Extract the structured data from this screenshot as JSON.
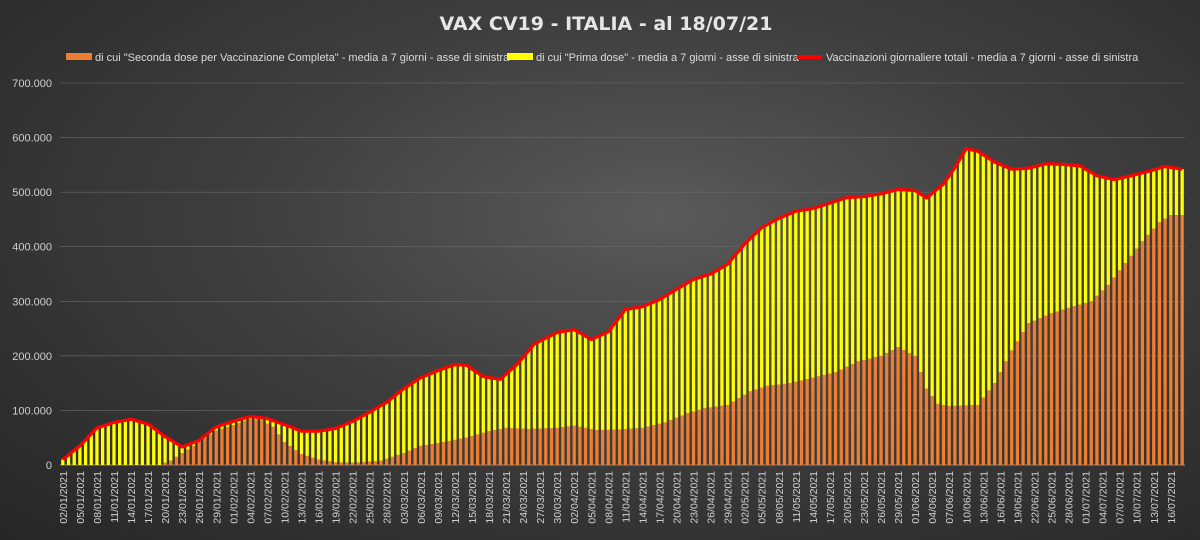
{
  "chart_data": {
    "type": "bar",
    "title": "VAX CV19  -  ITALIA  - al 18/07/21",
    "xlabel": "",
    "ylabel": "",
    "ylim": [
      0,
      700000
    ],
    "yticks": [
      0,
      100000,
      200000,
      300000,
      400000,
      500000,
      600000,
      700000
    ],
    "ytick_labels": [
      "0",
      "100.000",
      "200.000",
      "300.000",
      "400.000",
      "500.000",
      "600.000",
      "700.000"
    ],
    "x_start": "02/01/2021",
    "x_end": "18/07/2021",
    "x_tick_labels": [
      "02/01/2021",
      "05/01/2021",
      "08/01/2021",
      "11/01/2021",
      "14/01/2021",
      "17/01/2021",
      "20/01/2021",
      "23/01/2021",
      "26/01/2021",
      "29/01/2021",
      "01/02/2021",
      "04/02/2021",
      "07/02/2021",
      "10/02/2021",
      "13/02/2021",
      "16/02/2021",
      "19/02/2021",
      "22/02/2021",
      "25/02/2021",
      "28/02/2021",
      "03/03/2021",
      "06/03/2021",
      "09/03/2021",
      "12/03/2021",
      "15/03/2021",
      "18/03/2021",
      "21/03/2021",
      "24/03/2021",
      "27/03/2021",
      "30/03/2021",
      "02/04/2021",
      "05/04/2021",
      "08/04/2021",
      "11/04/2021",
      "14/04/2021",
      "17/04/2021",
      "20/04/2021",
      "23/04/2021",
      "26/04/2021",
      "29/04/2021",
      "02/05/2021",
      "05/05/2021",
      "08/05/2021",
      "11/05/2021",
      "14/05/2021",
      "17/05/2021",
      "20/05/2021",
      "23/05/2021",
      "26/05/2021",
      "29/05/2021",
      "01/06/2021",
      "04/06/2021",
      "07/06/2021",
      "10/06/2021",
      "13/06/2021",
      "16/06/2021",
      "19/06/2021",
      "22/06/2021",
      "25/06/2021",
      "28/06/2021",
      "01/07/2021",
      "04/07/2021",
      "07/07/2021",
      "10/07/2021",
      "13/07/2021",
      "16/07/2021"
    ],
    "legend_position": "top",
    "grid": true,
    "series": [
      {
        "name": "di cui \"Seconda dose per Vaccinazione Completa\" - media a 7 giorni - asse di sinistra",
        "color": "#ed7d31",
        "kind": "bar",
        "keypoints": [
          [
            "02/01/2021",
            0
          ],
          [
            "19/01/2021",
            0
          ],
          [
            "21/01/2021",
            8000
          ],
          [
            "23/01/2021",
            22000
          ],
          [
            "25/01/2021",
            35000
          ],
          [
            "29/01/2021",
            63000
          ],
          [
            "01/02/2021",
            73000
          ],
          [
            "04/02/2021",
            85000
          ],
          [
            "06/02/2021",
            82000
          ],
          [
            "08/02/2021",
            70000
          ],
          [
            "10/02/2021",
            42000
          ],
          [
            "13/02/2021",
            20000
          ],
          [
            "16/02/2021",
            10000
          ],
          [
            "19/02/2021",
            5000
          ],
          [
            "22/02/2021",
            4000
          ],
          [
            "27/02/2021",
            8000
          ],
          [
            "03/03/2021",
            22000
          ],
          [
            "06/03/2021",
            35000
          ],
          [
            "10/03/2021",
            42000
          ],
          [
            "14/03/2021",
            50000
          ],
          [
            "18/03/2021",
            62000
          ],
          [
            "21/03/2021",
            68000
          ],
          [
            "25/03/2021",
            66000
          ],
          [
            "30/03/2021",
            68000
          ],
          [
            "02/04/2021",
            72000
          ],
          [
            "06/04/2021",
            64000
          ],
          [
            "10/04/2021",
            65000
          ],
          [
            "14/04/2021",
            68000
          ],
          [
            "18/04/2021",
            78000
          ],
          [
            "22/04/2021",
            95000
          ],
          [
            "25/04/2021",
            104000
          ],
          [
            "29/04/2021",
            110000
          ],
          [
            "03/05/2021",
            135000
          ],
          [
            "06/05/2021",
            145000
          ],
          [
            "10/05/2021",
            150000
          ],
          [
            "14/05/2021",
            160000
          ],
          [
            "18/05/2021",
            170000
          ],
          [
            "22/05/2021",
            190000
          ],
          [
            "26/05/2021",
            200000
          ],
          [
            "29/05/2021",
            216000
          ],
          [
            "01/06/2021",
            200000
          ],
          [
            "03/06/2021",
            140000
          ],
          [
            "05/06/2021",
            112000
          ],
          [
            "07/06/2021",
            108000
          ],
          [
            "12/06/2021",
            110000
          ],
          [
            "15/06/2021",
            150000
          ],
          [
            "18/06/2021",
            210000
          ],
          [
            "21/06/2021",
            260000
          ],
          [
            "25/06/2021",
            278000
          ],
          [
            "28/06/2021",
            288000
          ],
          [
            "02/07/2021",
            300000
          ],
          [
            "05/07/2021",
            330000
          ],
          [
            "08/07/2021",
            370000
          ],
          [
            "11/07/2021",
            410000
          ],
          [
            "14/07/2021",
            445000
          ],
          [
            "16/07/2021",
            458000
          ],
          [
            "18/07/2021",
            458000
          ]
        ]
      },
      {
        "name": "di cui \"Prima dose\" - media a 7 giorni - asse di sinistra",
        "color": "#ffff00",
        "kind": "bar",
        "derived": "total minus seconda dose"
      },
      {
        "name": "Vaccinazioni giornaliere totali - media a 7 giorni - asse di sinistra",
        "color": "#ff0000",
        "kind": "line",
        "keypoints": [
          [
            "02/01/2021",
            10000
          ],
          [
            "05/01/2021",
            35000
          ],
          [
            "08/01/2021",
            68000
          ],
          [
            "11/01/2021",
            78000
          ],
          [
            "14/01/2021",
            84000
          ],
          [
            "17/01/2021",
            75000
          ],
          [
            "20/01/2021",
            52000
          ],
          [
            "23/01/2021",
            33000
          ],
          [
            "26/01/2021",
            45000
          ],
          [
            "29/01/2021",
            70000
          ],
          [
            "01/02/2021",
            80000
          ],
          [
            "04/02/2021",
            89000
          ],
          [
            "07/02/2021",
            85000
          ],
          [
            "10/02/2021",
            74000
          ],
          [
            "13/02/2021",
            62000
          ],
          [
            "16/02/2021",
            62000
          ],
          [
            "19/02/2021",
            67000
          ],
          [
            "22/02/2021",
            80000
          ],
          [
            "25/02/2021",
            97000
          ],
          [
            "28/02/2021",
            115000
          ],
          [
            "03/03/2021",
            140000
          ],
          [
            "06/03/2021",
            160000
          ],
          [
            "09/03/2021",
            173000
          ],
          [
            "12/03/2021",
            184000
          ],
          [
            "14/03/2021",
            183000
          ],
          [
            "17/03/2021",
            162000
          ],
          [
            "20/03/2021",
            157000
          ],
          [
            "23/03/2021",
            185000
          ],
          [
            "26/03/2021",
            222000
          ],
          [
            "30/03/2021",
            243000
          ],
          [
            "02/04/2021",
            248000
          ],
          [
            "05/04/2021",
            230000
          ],
          [
            "08/04/2021",
            244000
          ],
          [
            "11/04/2021",
            285000
          ],
          [
            "14/04/2021",
            290000
          ],
          [
            "17/04/2021",
            303000
          ],
          [
            "20/04/2021",
            322000
          ],
          [
            "23/04/2021",
            340000
          ],
          [
            "26/04/2021",
            350000
          ],
          [
            "29/04/2021",
            368000
          ],
          [
            "02/05/2021",
            405000
          ],
          [
            "05/05/2021",
            435000
          ],
          [
            "08/05/2021",
            452000
          ],
          [
            "11/05/2021",
            465000
          ],
          [
            "14/05/2021",
            470000
          ],
          [
            "17/05/2021",
            480000
          ],
          [
            "20/05/2021",
            490000
          ],
          [
            "23/05/2021",
            492000
          ],
          [
            "26/05/2021",
            497000
          ],
          [
            "29/05/2021",
            505000
          ],
          [
            "01/06/2021",
            503000
          ],
          [
            "03/06/2021",
            489000
          ],
          [
            "06/06/2021",
            515000
          ],
          [
            "08/06/2021",
            545000
          ],
          [
            "10/06/2021",
            580000
          ],
          [
            "12/06/2021",
            575000
          ],
          [
            "15/06/2021",
            555000
          ],
          [
            "18/06/2021",
            542000
          ],
          [
            "21/06/2021",
            544000
          ],
          [
            "24/06/2021",
            552000
          ],
          [
            "27/06/2021",
            551000
          ],
          [
            "30/06/2021",
            548000
          ],
          [
            "03/07/2021",
            530000
          ],
          [
            "06/07/2021",
            523000
          ],
          [
            "09/07/2021",
            530000
          ],
          [
            "12/07/2021",
            538000
          ],
          [
            "15/07/2021",
            547000
          ],
          [
            "18/07/2021",
            542000
          ]
        ]
      }
    ]
  }
}
